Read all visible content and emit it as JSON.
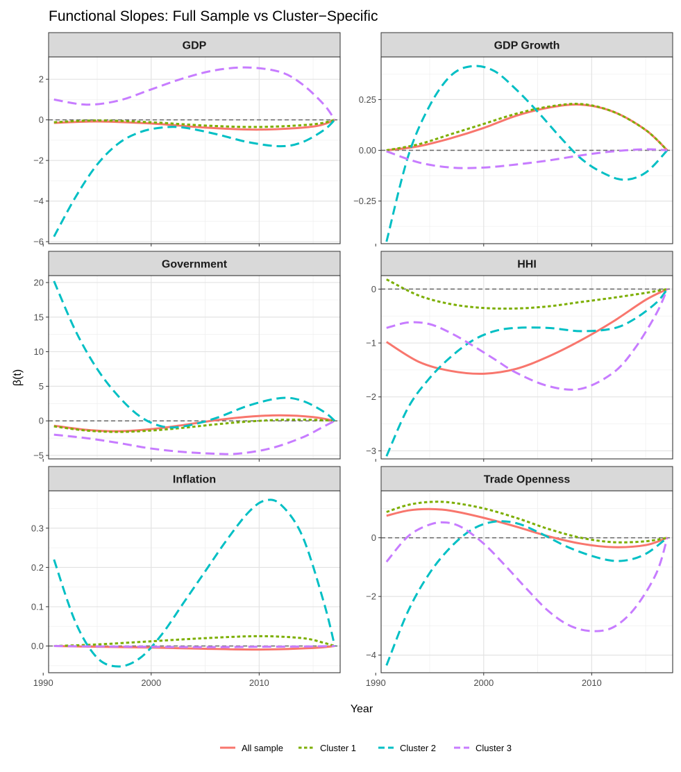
{
  "chart_data": {
    "type": "line",
    "title": "Functional Slopes: Full Sample vs Cluster−Specific",
    "xlabel": "Year",
    "ylabel": "β(t)",
    "xlim": [
      1990.5,
      2017.5
    ],
    "x_ticks": [
      1990,
      2000,
      2010
    ],
    "x_tick_labels": [
      "1990",
      "2000",
      "2010"
    ],
    "legend": {
      "position": "bottom",
      "entries": [
        "All sample",
        "Cluster 1",
        "Cluster 2",
        "Cluster 3"
      ]
    },
    "series_styles": [
      {
        "name": "All sample",
        "color": "#F8766D",
        "dash": "solid"
      },
      {
        "name": "Cluster 1",
        "color": "#7CAE00",
        "dash": "dotted"
      },
      {
        "name": "Cluster 2",
        "color": "#00BFC4",
        "dash": "dashed"
      },
      {
        "name": "Cluster 3",
        "color": "#C77CFF",
        "dash": "dashed"
      }
    ],
    "panels": [
      {
        "title": "GDP",
        "ylim": [
          -6.1,
          3.1
        ],
        "y_ticks": [
          -6,
          -4,
          -2,
          0,
          2
        ],
        "y_tick_labels": [
          "−6",
          "−4",
          "−2",
          "0",
          "2"
        ],
        "series": [
          {
            "name": "All sample",
            "x": [
              1991,
              1995,
              2000,
              2005,
              2010,
              2015,
              2017
            ],
            "values": [
              -0.15,
              -0.08,
              -0.18,
              -0.38,
              -0.48,
              -0.33,
              0
            ]
          },
          {
            "name": "Cluster 1",
            "x": [
              1991,
              1995,
              2000,
              2005,
              2010,
              2015,
              2017
            ],
            "values": [
              -0.12,
              -0.03,
              -0.12,
              -0.28,
              -0.35,
              -0.22,
              0
            ]
          },
          {
            "name": "Cluster 2",
            "x": [
              1991,
              1993,
              1995,
              1997,
              1999,
              2001,
              2003,
              2006,
              2009,
              2012,
              2014,
              2016,
              2017
            ],
            "values": [
              -5.75,
              -3.8,
              -2.2,
              -1.15,
              -0.6,
              -0.38,
              -0.38,
              -0.7,
              -1.1,
              -1.3,
              -1.1,
              -0.5,
              0
            ]
          },
          {
            "name": "Cluster 3",
            "x": [
              1991,
              1994,
              1997,
              2000,
              2003,
              2006,
              2009,
              2012,
              2014,
              2016,
              2017
            ],
            "values": [
              1.0,
              0.75,
              0.95,
              1.5,
              2.05,
              2.45,
              2.58,
              2.35,
              1.75,
              0.75,
              0
            ]
          }
        ]
      },
      {
        "title": "GDP Growth",
        "ylim": [
          -0.46,
          0.46
        ],
        "y_ticks": [
          -0.25,
          0,
          0.25
        ],
        "y_tick_labels": [
          "−0.25",
          "0.00",
          "0.25"
        ],
        "series": [
          {
            "name": "All sample",
            "x": [
              1991,
              1994,
              1997,
              2000,
              2003,
              2006,
              2009,
              2012,
              2015,
              2017
            ],
            "values": [
              0.0,
              0.02,
              0.06,
              0.11,
              0.17,
              0.21,
              0.225,
              0.19,
              0.1,
              0
            ]
          },
          {
            "name": "Cluster 1",
            "x": [
              1991,
              1994,
              1997,
              2000,
              2003,
              2006,
              2009,
              2012,
              2015,
              2017
            ],
            "values": [
              0.0,
              0.03,
              0.08,
              0.13,
              0.18,
              0.215,
              0.228,
              0.19,
              0.1,
              0
            ]
          },
          {
            "name": "Cluster 2",
            "x": [
              1991,
              1993,
              1995,
              1997,
              1999,
              2001,
              2003,
              2005,
              2007,
              2009,
              2011,
              2013,
              2015,
              2017
            ],
            "values": [
              -0.45,
              -0.03,
              0.22,
              0.37,
              0.415,
              0.39,
              0.3,
              0.19,
              0.07,
              -0.04,
              -0.11,
              -0.145,
              -0.11,
              0
            ]
          },
          {
            "name": "Cluster 3",
            "x": [
              1991,
              1994,
              1997,
              2000,
              2003,
              2006,
              2009,
              2012,
              2015,
              2017
            ],
            "values": [
              -0.005,
              -0.06,
              -0.085,
              -0.085,
              -0.07,
              -0.05,
              -0.025,
              -0.005,
              0.005,
              0
            ]
          }
        ]
      },
      {
        "title": "Government",
        "ylim": [
          -5.5,
          21.0
        ],
        "y_ticks": [
          -5,
          0,
          5,
          10,
          15,
          20
        ],
        "y_tick_labels": [
          "−5",
          "0",
          "5",
          "10",
          "15",
          "20"
        ],
        "series": [
          {
            "name": "All sample",
            "x": [
              1991,
              1994,
              1997,
              2000,
              2003,
              2006,
              2009,
              2012,
              2015,
              2017
            ],
            "values": [
              -0.7,
              -1.3,
              -1.5,
              -1.2,
              -0.6,
              0.1,
              0.6,
              0.8,
              0.55,
              0
            ]
          },
          {
            "name": "Cluster 1",
            "x": [
              1991,
              1994,
              1997,
              2000,
              2003,
              2006,
              2009,
              2012,
              2015,
              2017
            ],
            "values": [
              -0.8,
              -1.4,
              -1.6,
              -1.4,
              -1.0,
              -0.5,
              -0.1,
              0.15,
              0.15,
              0
            ]
          },
          {
            "name": "Cluster 2",
            "x": [
              1991,
              1993,
              1995,
              1997,
              1999,
              2001,
              2003,
              2006,
              2009,
              2012,
              2014,
              2016,
              2017
            ],
            "values": [
              20.2,
              13.0,
              7.5,
              3.5,
              0.6,
              -0.8,
              -0.8,
              0.4,
              2.2,
              3.3,
              2.9,
              1.3,
              0
            ]
          },
          {
            "name": "Cluster 3",
            "x": [
              1991,
              1994,
              1997,
              2000,
              2003,
              2006,
              2008,
              2011,
              2014,
              2016,
              2017
            ],
            "values": [
              -2.0,
              -2.5,
              -3.2,
              -4.0,
              -4.5,
              -4.75,
              -4.75,
              -4.0,
              -2.4,
              -0.8,
              0
            ]
          }
        ]
      },
      {
        "title": "HHI",
        "ylim": [
          -3.15,
          0.25
        ],
        "y_ticks": [
          -3,
          -2,
          -1,
          0
        ],
        "y_tick_labels": [
          "−3",
          "−2",
          "−1",
          "0"
        ],
        "series": [
          {
            "name": "All sample",
            "x": [
              1991,
              1994,
              1997,
              2000,
              2003,
              2006,
              2009,
              2012,
              2015,
              2017
            ],
            "values": [
              -0.98,
              -1.35,
              -1.52,
              -1.57,
              -1.48,
              -1.25,
              -0.95,
              -0.6,
              -0.2,
              0
            ]
          },
          {
            "name": "Cluster 1",
            "x": [
              1991,
              1994,
              1997,
              2000,
              2003,
              2006,
              2009,
              2012,
              2015,
              2017
            ],
            "values": [
              0.18,
              -0.12,
              -0.28,
              -0.35,
              -0.36,
              -0.32,
              -0.24,
              -0.16,
              -0.07,
              0
            ]
          },
          {
            "name": "Cluster 2",
            "x": [
              1991,
              1993,
              1995,
              1997,
              1999,
              2001,
              2003,
              2006,
              2009,
              2012,
              2014,
              2016,
              2017
            ],
            "values": [
              -3.1,
              -2.2,
              -1.65,
              -1.25,
              -0.95,
              -0.78,
              -0.72,
              -0.72,
              -0.78,
              -0.73,
              -0.55,
              -0.25,
              0
            ]
          },
          {
            "name": "Cluster 3",
            "x": [
              1991,
              1993,
              1995,
              1997,
              1999,
              2001,
              2003,
              2006,
              2009,
              2012,
              2014,
              2016,
              2017
            ],
            "values": [
              -0.72,
              -0.62,
              -0.65,
              -0.82,
              -1.05,
              -1.3,
              -1.55,
              -1.8,
              -1.85,
              -1.55,
              -1.1,
              -0.45,
              0
            ]
          }
        ]
      },
      {
        "title": "Inflation",
        "ylim": [
          -0.068,
          0.395
        ],
        "y_ticks": [
          0,
          0.1,
          0.2,
          0.3
        ],
        "y_tick_labels": [
          "0.0",
          "0.1",
          "0.2",
          "0.3"
        ],
        "series": [
          {
            "name": "All sample",
            "x": [
              1991,
              1995,
              2000,
              2005,
              2010,
              2015,
              2017
            ],
            "values": [
              0.0,
              -0.002,
              -0.004,
              -0.007,
              -0.009,
              -0.005,
              0
            ]
          },
          {
            "name": "Cluster 1",
            "x": [
              1991,
              1995,
              2000,
              2005,
              2010,
              2014,
              2016,
              2017
            ],
            "values": [
              0.0,
              0.004,
              0.012,
              0.02,
              0.025,
              0.02,
              0.008,
              0
            ]
          },
          {
            "name": "Cluster 2",
            "x": [
              1991,
              1993,
              1995,
              1997,
              1999,
              2001,
              2003,
              2005,
              2007,
              2009,
              2010.5,
              2012,
              2014,
              2016,
              2017
            ],
            "values": [
              0.22,
              0.06,
              -0.03,
              -0.052,
              -0.03,
              0.03,
              0.11,
              0.19,
              0.27,
              0.34,
              0.37,
              0.36,
              0.28,
              0.11,
              0
            ]
          },
          {
            "name": "Cluster 3",
            "x": [
              1991,
              1995,
              2000,
              2005,
              2010,
              2015,
              2017
            ],
            "values": [
              0.0,
              -0.001,
              -0.002,
              -0.003,
              -0.002,
              -0.001,
              0
            ]
          }
        ]
      },
      {
        "title": "Trade Openness",
        "ylim": [
          -4.6,
          1.6
        ],
        "y_ticks": [
          -4,
          -2,
          0
        ],
        "y_tick_labels": [
          "−4",
          "−2",
          "0"
        ],
        "series": [
          {
            "name": "All sample",
            "x": [
              1991,
              1993,
              1995,
              1997,
              2000,
              2003,
              2006,
              2009,
              2012,
              2015,
              2017
            ],
            "values": [
              0.75,
              0.93,
              0.98,
              0.92,
              0.68,
              0.38,
              0.05,
              -0.2,
              -0.32,
              -0.25,
              0
            ]
          },
          {
            "name": "Cluster 1",
            "x": [
              1991,
              1993,
              1995,
              1997,
              2000,
              2003,
              2006,
              2009,
              2012,
              2015,
              2017
            ],
            "values": [
              0.88,
              1.12,
              1.22,
              1.2,
              1.0,
              0.68,
              0.3,
              0.0,
              -0.15,
              -0.12,
              0
            ]
          },
          {
            "name": "Cluster 2",
            "x": [
              1991,
              1993,
              1995,
              1997,
              1999,
              2001,
              2003,
              2005,
              2008,
              2011,
              2013,
              2015,
              2017
            ],
            "values": [
              -4.35,
              -2.5,
              -1.2,
              -0.3,
              0.3,
              0.55,
              0.5,
              0.2,
              -0.35,
              -0.72,
              -0.78,
              -0.55,
              0
            ]
          },
          {
            "name": "Cluster 3",
            "x": [
              1991,
              1993,
              1995,
              1996.5,
              1998,
              2000,
              2002,
              2004,
              2006,
              2008,
              2010,
              2012,
              2014,
              2016,
              2017
            ],
            "values": [
              -0.82,
              0.05,
              0.45,
              0.52,
              0.35,
              -0.2,
              -0.95,
              -1.75,
              -2.5,
              -3.0,
              -3.18,
              -3.05,
              -2.4,
              -1.2,
              0
            ]
          }
        ]
      }
    ]
  }
}
